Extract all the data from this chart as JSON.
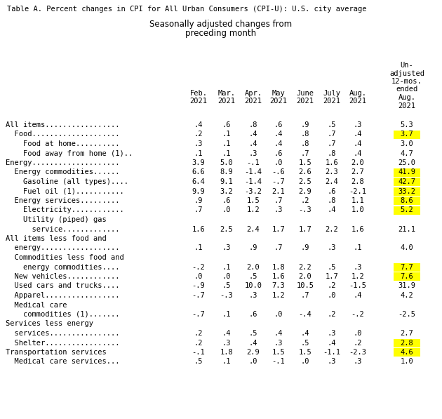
{
  "title": "Table A. Percent changes in CPI for All Urban Consumers (CPI-U): U.S. city average",
  "subtitle1": "Seasonally adjusted changes from",
  "subtitle2": "preceding month",
  "col_headers_line1": [
    "Feb.",
    "Mar.",
    "Apr.",
    "May",
    "June",
    "July",
    "Aug.",
    "Un-"
  ],
  "col_headers_line2": [
    "2021",
    "2021",
    "2021",
    "2021",
    "2021",
    "2021",
    "2021",
    "adjusted"
  ],
  "col_headers_line3": [
    "",
    "",
    "",
    "",
    "",
    "",
    "",
    "12-mos."
  ],
  "col_headers_line4": [
    "",
    "",
    "",
    "",
    "",
    "",
    "",
    "ended"
  ],
  "col_headers_line5": [
    "",
    "",
    "",
    "",
    "",
    "",
    "",
    "Aug."
  ],
  "col_headers_line6": [
    "",
    "",
    "",
    "",
    "",
    "",
    "",
    "2021"
  ],
  "rows": [
    {
      "label": "All items.................",
      "values": [
        ".4",
        ".6",
        ".8",
        ".6",
        ".9",
        ".5",
        ".3",
        "5.3"
      ],
      "highlight": false,
      "multiline": false
    },
    {
      "label": "  Food....................",
      "values": [
        ".2",
        ".1",
        ".4",
        ".4",
        ".8",
        ".7",
        ".4",
        "3.7"
      ],
      "highlight": true,
      "multiline": false
    },
    {
      "label": "    Food at home..........",
      "values": [
        ".3",
        ".1",
        ".4",
        ".4",
        ".8",
        ".7",
        ".4",
        "3.0"
      ],
      "highlight": false,
      "multiline": false
    },
    {
      "label": "    Food away from home (1)..",
      "values": [
        ".1",
        ".1",
        ".3",
        ".6",
        ".7",
        ".8",
        ".4",
        "4.7"
      ],
      "highlight": false,
      "multiline": false
    },
    {
      "label": "Energy....................",
      "values": [
        "3.9",
        "5.0",
        "-.1",
        ".0",
        "1.5",
        "1.6",
        "2.0",
        "25.0"
      ],
      "highlight": false,
      "multiline": false
    },
    {
      "label": "  Energy commodities......",
      "values": [
        "6.6",
        "8.9",
        "-1.4",
        "-.6",
        "2.6",
        "2.3",
        "2.7",
        "41.9"
      ],
      "highlight": true,
      "multiline": false
    },
    {
      "label": "    Gasoline (all types)....",
      "values": [
        "6.4",
        "9.1",
        "-1.4",
        "-.7",
        "2.5",
        "2.4",
        "2.8",
        "42.7"
      ],
      "highlight": true,
      "multiline": false
    },
    {
      "label": "    Fuel oil (1)...........",
      "values": [
        "9.9",
        "3.2",
        "-3.2",
        "2.1",
        "2.9",
        ".6",
        "-2.1",
        "33.2"
      ],
      "highlight": true,
      "multiline": false
    },
    {
      "label": "  Energy services.........",
      "values": [
        ".9",
        ".6",
        "1.5",
        ".7",
        ".2",
        ".8",
        "1.1",
        "8.6"
      ],
      "highlight": true,
      "multiline": false
    },
    {
      "label": "    Electricity............",
      "values": [
        ".7",
        ".0",
        "1.2",
        ".3",
        "-.3",
        ".4",
        "1.0",
        "5.2"
      ],
      "highlight": true,
      "multiline": false
    },
    {
      "label": "    Utility (piped) gas",
      "values": [
        "",
        "",
        "",
        "",
        "",
        "",
        "",
        ""
      ],
      "highlight": false,
      "multiline": true,
      "multiline_type": "top"
    },
    {
      "label": "      service.............",
      "values": [
        "1.6",
        "2.5",
        "2.4",
        "1.7",
        "1.7",
        "2.2",
        "1.6",
        "21.1"
      ],
      "highlight": false,
      "multiline": true,
      "multiline_type": "bottom"
    },
    {
      "label": "All items less food and",
      "values": [
        "",
        "",
        "",
        "",
        "",
        "",
        "",
        ""
      ],
      "highlight": false,
      "multiline": true,
      "multiline_type": "top"
    },
    {
      "label": "  energy..................",
      "values": [
        ".1",
        ".3",
        ".9",
        ".7",
        ".9",
        ".3",
        ".1",
        "4.0"
      ],
      "highlight": false,
      "multiline": true,
      "multiline_type": "bottom"
    },
    {
      "label": "  Commodities less food and",
      "values": [
        "",
        "",
        "",
        "",
        "",
        "",
        "",
        ""
      ],
      "highlight": false,
      "multiline": true,
      "multiline_type": "top"
    },
    {
      "label": "    energy commodities....",
      "values": [
        "-.2",
        ".1",
        "2.0",
        "1.8",
        "2.2",
        ".5",
        ".3",
        "7.7"
      ],
      "highlight": true,
      "multiline": true,
      "multiline_type": "bottom"
    },
    {
      "label": "  New vehicles............",
      "values": [
        ".0",
        ".0",
        ".5",
        "1.6",
        "2.0",
        "1.7",
        "1.2",
        "7.6"
      ],
      "highlight": true,
      "multiline": false
    },
    {
      "label": "  Used cars and trucks....",
      "values": [
        "-.9",
        ".5",
        "10.0",
        "7.3",
        "10.5",
        ".2",
        "-1.5",
        "31.9"
      ],
      "highlight": false,
      "multiline": false
    },
    {
      "label": "  Apparel.................",
      "values": [
        "-.7",
        "-.3",
        ".3",
        "1.2",
        ".7",
        ".0",
        ".4",
        "4.2"
      ],
      "highlight": false,
      "multiline": false
    },
    {
      "label": "  Medical care",
      "values": [
        "",
        "",
        "",
        "",
        "",
        "",
        "",
        ""
      ],
      "highlight": false,
      "multiline": true,
      "multiline_type": "top"
    },
    {
      "label": "    commodities (1).......",
      "values": [
        "-.7",
        ".1",
        ".6",
        ".0",
        "-.4",
        ".2",
        "-.2",
        "-2.5"
      ],
      "highlight": false,
      "multiline": true,
      "multiline_type": "bottom"
    },
    {
      "label": "Services less energy",
      "values": [
        "",
        "",
        "",
        "",
        "",
        "",
        "",
        ""
      ],
      "highlight": false,
      "multiline": true,
      "multiline_type": "top"
    },
    {
      "label": "  services................",
      "values": [
        ".2",
        ".4",
        ".5",
        ".4",
        ".4",
        ".3",
        ".0",
        "2.7"
      ],
      "highlight": false,
      "multiline": true,
      "multiline_type": "bottom"
    },
    {
      "label": "  Shelter.................",
      "values": [
        ".2",
        ".3",
        ".4",
        ".3",
        ".5",
        ".4",
        ".2",
        "2.8"
      ],
      "highlight": true,
      "multiline": false
    },
    {
      "label": "Transportation services",
      "values": [
        "-.1",
        "1.8",
        "2.9",
        "1.5",
        "1.5",
        "-1.1",
        "-2.3",
        "4.6"
      ],
      "highlight": true,
      "multiline": false
    },
    {
      "label": "  Medical care services...",
      "values": [
        ".5",
        ".1",
        ".0",
        "-.1",
        ".0",
        ".3",
        ".3",
        "1.0"
      ],
      "highlight": false,
      "multiline": false
    }
  ],
  "highlight_color": "#FFFF00",
  "bg_color": "#FFFFFF"
}
